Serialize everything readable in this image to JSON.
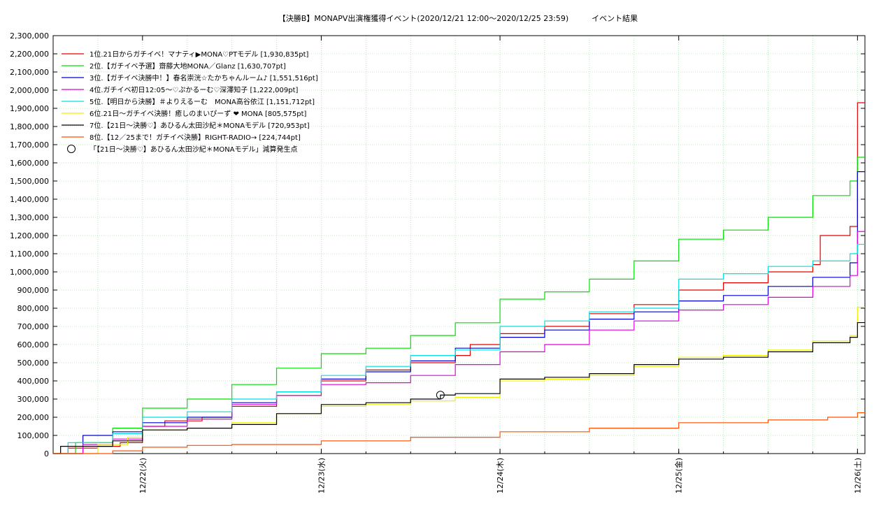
{
  "chart_data": {
    "type": "line",
    "title": "【決勝B】MONAPV出演権獲得イベント(2020/12/21 12:00〜2020/12/25 23:59)　　　イベント結果",
    "xlabel": "",
    "ylabel": "",
    "x_range": [
      "2020-12-21 12:00",
      "2020-12-26 01:00"
    ],
    "ylim": [
      0,
      2300000
    ],
    "y_ticks": [
      0,
      100000,
      200000,
      300000,
      400000,
      500000,
      600000,
      700000,
      800000,
      900000,
      1000000,
      1100000,
      1200000,
      1300000,
      1400000,
      1500000,
      1600000,
      1700000,
      1800000,
      1900000,
      2000000,
      2100000,
      2200000,
      2300000
    ],
    "y_tick_labels": [
      "0",
      "100,000",
      "200,000",
      "300,000",
      "400,000",
      "500,000",
      "600,000",
      "700,000",
      "800,000",
      "900,000",
      "1,000,000",
      "1,100,000",
      "1,200,000",
      "1,300,000",
      "1,400,000",
      "1,500,000",
      "1,600,000",
      "1,700,000",
      "1,800,000",
      "1,900,000",
      "2,000,000",
      "2,100,000",
      "2,200,000",
      "2,300,000"
    ],
    "x_ticks": [
      {
        "date": "2020-12-22",
        "label": "12/22(火)"
      },
      {
        "date": "2020-12-23",
        "label": "12/23(水)"
      },
      {
        "date": "2020-12-24",
        "label": "12/24(木)"
      },
      {
        "date": "2020-12-25",
        "label": "12/25(金)"
      },
      {
        "date": "2020-12-26",
        "label": "12/26(土)"
      }
    ],
    "grid": true,
    "legend_position": "top-left",
    "series": [
      {
        "name": "1位.21日からガチイベ！マナティ▶MONA♡PTモデル [1,930,835pt]",
        "color": "#e00000",
        "points": [
          [
            "2020-12-21 12:00",
            0
          ],
          [
            "2020-12-21 14:00",
            30000
          ],
          [
            "2020-12-21 18:00",
            40000
          ],
          [
            "2020-12-21 21:00",
            60000
          ],
          [
            "2020-12-22 00:00",
            150000
          ],
          [
            "2020-12-22 03:00",
            180000
          ],
          [
            "2020-12-22 08:00",
            200000
          ],
          [
            "2020-12-22 12:00",
            260000
          ],
          [
            "2020-12-22 18:00",
            320000
          ],
          [
            "2020-12-23 00:00",
            400000
          ],
          [
            "2020-12-23 06:00",
            460000
          ],
          [
            "2020-12-23 12:00",
            500000
          ],
          [
            "2020-12-23 18:00",
            540000
          ],
          [
            "2020-12-23 20:00",
            600000
          ],
          [
            "2020-12-24 00:00",
            660000
          ],
          [
            "2020-12-24 06:00",
            700000
          ],
          [
            "2020-12-24 12:00",
            770000
          ],
          [
            "2020-12-24 18:00",
            820000
          ],
          [
            "2020-12-25 00:00",
            900000
          ],
          [
            "2020-12-25 06:00",
            940000
          ],
          [
            "2020-12-25 12:00",
            1000000
          ],
          [
            "2020-12-25 18:00",
            1040000
          ],
          [
            "2020-12-25 19:00",
            1200000
          ],
          [
            "2020-12-25 23:00",
            1250000
          ],
          [
            "2020-12-26 00:00",
            1930835
          ],
          [
            "2020-12-26 01:00",
            1930835
          ]
        ]
      },
      {
        "name": "2位.【ガチイベ予選】齋藤大地MONA／Glanz [1,630,707pt]",
        "color": "#00e000",
        "points": [
          [
            "2020-12-21 12:00",
            0
          ],
          [
            "2020-12-21 15:00",
            60000
          ],
          [
            "2020-12-21 20:00",
            140000
          ],
          [
            "2020-12-22 00:00",
            250000
          ],
          [
            "2020-12-22 06:00",
            300000
          ],
          [
            "2020-12-22 12:00",
            380000
          ],
          [
            "2020-12-22 18:00",
            470000
          ],
          [
            "2020-12-23 00:00",
            550000
          ],
          [
            "2020-12-23 06:00",
            580000
          ],
          [
            "2020-12-23 12:00",
            650000
          ],
          [
            "2020-12-23 18:00",
            720000
          ],
          [
            "2020-12-24 00:00",
            850000
          ],
          [
            "2020-12-24 06:00",
            890000
          ],
          [
            "2020-12-24 12:00",
            960000
          ],
          [
            "2020-12-24 18:00",
            1060000
          ],
          [
            "2020-12-25 00:00",
            1180000
          ],
          [
            "2020-12-25 06:00",
            1230000
          ],
          [
            "2020-12-25 12:00",
            1300000
          ],
          [
            "2020-12-25 18:00",
            1420000
          ],
          [
            "2020-12-25 23:00",
            1500000
          ],
          [
            "2020-12-26 00:00",
            1630707
          ],
          [
            "2020-12-26 01:00",
            1630707
          ]
        ]
      },
      {
        "name": "3位.【ガチイベ決勝中！】春名崇洸☆たかちゃんルーム♪ [1,551,516pt]",
        "color": "#0000d0",
        "points": [
          [
            "2020-12-21 12:00",
            0
          ],
          [
            "2020-12-21 16:00",
            100000
          ],
          [
            "2020-12-21 20:00",
            120000
          ],
          [
            "2020-12-22 00:00",
            170000
          ],
          [
            "2020-12-22 06:00",
            200000
          ],
          [
            "2020-12-22 12:00",
            280000
          ],
          [
            "2020-12-22 18:00",
            340000
          ],
          [
            "2020-12-23 00:00",
            410000
          ],
          [
            "2020-12-23 06:00",
            450000
          ],
          [
            "2020-12-23 12:00",
            510000
          ],
          [
            "2020-12-23 18:00",
            580000
          ],
          [
            "2020-12-24 00:00",
            640000
          ],
          [
            "2020-12-24 06:00",
            680000
          ],
          [
            "2020-12-24 12:00",
            740000
          ],
          [
            "2020-12-24 18:00",
            780000
          ],
          [
            "2020-12-25 00:00",
            840000
          ],
          [
            "2020-12-25 06:00",
            870000
          ],
          [
            "2020-12-25 12:00",
            920000
          ],
          [
            "2020-12-25 18:00",
            970000
          ],
          [
            "2020-12-25 23:00",
            1050000
          ],
          [
            "2020-12-26 00:00",
            1551516
          ],
          [
            "2020-12-26 01:00",
            1551516
          ]
        ]
      },
      {
        "name": "4位.ガチイベ初日12:05〜♡ぷかるーむ♡深澤知子 [1,222,009pt]",
        "color": "#e000e0",
        "points": [
          [
            "2020-12-21 12:00",
            0
          ],
          [
            "2020-12-21 16:00",
            50000
          ],
          [
            "2020-12-21 20:00",
            80000
          ],
          [
            "2020-12-22 00:00",
            150000
          ],
          [
            "2020-12-22 06:00",
            190000
          ],
          [
            "2020-12-22 12:00",
            270000
          ],
          [
            "2020-12-22 18:00",
            320000
          ],
          [
            "2020-12-23 00:00",
            380000
          ],
          [
            "2020-12-23 06:00",
            390000
          ],
          [
            "2020-12-23 12:00",
            430000
          ],
          [
            "2020-12-23 18:00",
            490000
          ],
          [
            "2020-12-24 00:00",
            560000
          ],
          [
            "2020-12-24 06:00",
            600000
          ],
          [
            "2020-12-24 12:00",
            680000
          ],
          [
            "2020-12-24 18:00",
            730000
          ],
          [
            "2020-12-25 00:00",
            790000
          ],
          [
            "2020-12-25 06:00",
            820000
          ],
          [
            "2020-12-25 12:00",
            860000
          ],
          [
            "2020-12-25 18:00",
            920000
          ],
          [
            "2020-12-25 23:00",
            980000
          ],
          [
            "2020-12-26 00:00",
            1222009
          ],
          [
            "2020-12-26 01:00",
            1222009
          ]
        ]
      },
      {
        "name": "5位.【明日から決勝】＃よりえるーむ　MONA高谷依江 [1,151,712pt]",
        "color": "#00e0e0",
        "points": [
          [
            "2020-12-21 12:00",
            0
          ],
          [
            "2020-12-21 14:00",
            60000
          ],
          [
            "2020-12-21 20:00",
            110000
          ],
          [
            "2020-12-22 00:00",
            200000
          ],
          [
            "2020-12-22 06:00",
            230000
          ],
          [
            "2020-12-22 12:00",
            300000
          ],
          [
            "2020-12-22 18:00",
            340000
          ],
          [
            "2020-12-23 00:00",
            430000
          ],
          [
            "2020-12-23 06:00",
            480000
          ],
          [
            "2020-12-23 12:00",
            540000
          ],
          [
            "2020-12-23 18:00",
            570000
          ],
          [
            "2020-12-24 00:00",
            700000
          ],
          [
            "2020-12-24 06:00",
            730000
          ],
          [
            "2020-12-24 12:00",
            780000
          ],
          [
            "2020-12-24 18:00",
            800000
          ],
          [
            "2020-12-25 00:00",
            960000
          ],
          [
            "2020-12-25 06:00",
            990000
          ],
          [
            "2020-12-25 12:00",
            1030000
          ],
          [
            "2020-12-25 18:00",
            1060000
          ],
          [
            "2020-12-25 23:00",
            1100000
          ],
          [
            "2020-12-26 00:00",
            1151712
          ],
          [
            "2020-12-26 01:00",
            1151712
          ]
        ]
      },
      {
        "name": "6位.21日〜ガチイベ決勝！癒しのまいぴーず ❤ MONA [805,575pt]",
        "color": "#f0f000",
        "points": [
          [
            "2020-12-21 12:00",
            0
          ],
          [
            "2020-12-21 18:00",
            50000
          ],
          [
            "2020-12-21 22:00",
            90000
          ],
          [
            "2020-12-22 00:00",
            130000
          ],
          [
            "2020-12-22 06:00",
            140000
          ],
          [
            "2020-12-22 12:00",
            170000
          ],
          [
            "2020-12-22 18:00",
            220000
          ],
          [
            "2020-12-23 00:00",
            260000
          ],
          [
            "2020-12-23 06:00",
            270000
          ],
          [
            "2020-12-23 12:00",
            290000
          ],
          [
            "2020-12-23 18:00",
            310000
          ],
          [
            "2020-12-24 00:00",
            400000
          ],
          [
            "2020-12-24 06:00",
            410000
          ],
          [
            "2020-12-24 12:00",
            430000
          ],
          [
            "2020-12-24 18:00",
            480000
          ],
          [
            "2020-12-25 00:00",
            530000
          ],
          [
            "2020-12-25 06:00",
            540000
          ],
          [
            "2020-12-25 12:00",
            570000
          ],
          [
            "2020-12-25 18:00",
            620000
          ],
          [
            "2020-12-25 23:00",
            650000
          ],
          [
            "2020-12-26 00:00",
            805575
          ],
          [
            "2020-12-26 01:00",
            805575
          ]
        ]
      },
      {
        "name": "7位.【21日〜決勝♡】あひるん太田沙紀＊MONAモデル [720,953pt]",
        "color": "#000000",
        "points": [
          [
            "2020-12-21 12:00",
            0
          ],
          [
            "2020-12-21 13:00",
            40000
          ],
          [
            "2020-12-21 20:00",
            70000
          ],
          [
            "2020-12-22 00:00",
            130000
          ],
          [
            "2020-12-22 06:00",
            140000
          ],
          [
            "2020-12-22 12:00",
            160000
          ],
          [
            "2020-12-22 18:00",
            220000
          ],
          [
            "2020-12-23 00:00",
            270000
          ],
          [
            "2020-12-23 06:00",
            280000
          ],
          [
            "2020-12-23 12:00",
            300000
          ],
          [
            "2020-12-23 16:00",
            322000
          ],
          [
            "2020-12-23 18:00",
            330000
          ],
          [
            "2020-12-24 00:00",
            410000
          ],
          [
            "2020-12-24 06:00",
            420000
          ],
          [
            "2020-12-24 12:00",
            440000
          ],
          [
            "2020-12-24 18:00",
            490000
          ],
          [
            "2020-12-25 00:00",
            520000
          ],
          [
            "2020-12-25 06:00",
            530000
          ],
          [
            "2020-12-25 12:00",
            560000
          ],
          [
            "2020-12-25 18:00",
            610000
          ],
          [
            "2020-12-25 23:00",
            640000
          ],
          [
            "2020-12-26 00:00",
            720953
          ],
          [
            "2020-12-26 01:00",
            720953
          ]
        ]
      },
      {
        "name": "8位.【12／25まで！ガチイベ決勝】RIGHT-RADIO→ [224,744pt]",
        "color": "#ff5000",
        "points": [
          [
            "2020-12-21 12:00",
            0
          ],
          [
            "2020-12-21 18:00",
            0
          ],
          [
            "2020-12-21 20:00",
            15000
          ],
          [
            "2020-12-22 00:00",
            35000
          ],
          [
            "2020-12-22 06:00",
            45000
          ],
          [
            "2020-12-22 12:00",
            50000
          ],
          [
            "2020-12-23 00:00",
            70000
          ],
          [
            "2020-12-23 12:00",
            90000
          ],
          [
            "2020-12-24 00:00",
            120000
          ],
          [
            "2020-12-24 12:00",
            140000
          ],
          [
            "2020-12-25 00:00",
            170000
          ],
          [
            "2020-12-25 12:00",
            185000
          ],
          [
            "2020-12-25 20:00",
            200000
          ],
          [
            "2020-12-26 00:00",
            224744
          ],
          [
            "2020-12-26 01:00",
            224744
          ]
        ]
      }
    ],
    "markers": [
      {
        "name": "「【21日〜決勝♡】あひるん太田沙紀＊MONAモデル」減算発生点",
        "symbol": "circle",
        "x": "2020-12-23 16:00",
        "y": 322000
      }
    ]
  }
}
